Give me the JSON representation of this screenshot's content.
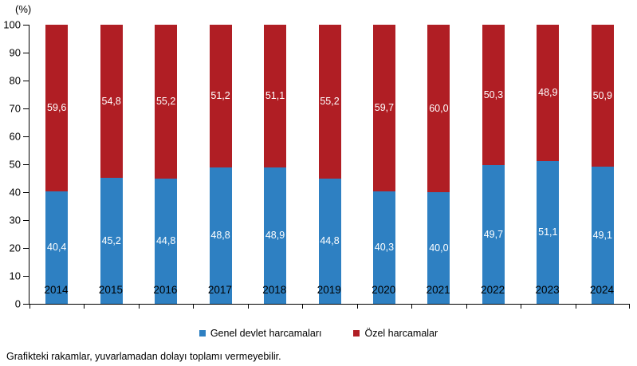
{
  "chart_data": {
    "type": "bar",
    "stacked": true,
    "title": "",
    "categories": [
      "2014",
      "2015",
      "2016",
      "2017",
      "2018",
      "2019",
      "2020",
      "2021",
      "2022",
      "2023",
      "2024"
    ],
    "series": [
      {
        "name": "Genel devlet harcamaları",
        "color": "#2E80C2",
        "values": [
          40.4,
          45.2,
          44.8,
          48.8,
          48.9,
          44.8,
          40.3,
          40.0,
          49.7,
          51.1,
          49.1
        ],
        "labels": [
          "40,4",
          "45,2",
          "44,8",
          "48,8",
          "48,9",
          "44,8",
          "40,3",
          "40,0",
          "49,7",
          "51,1",
          "49,1"
        ]
      },
      {
        "name": "Özel harcamalar",
        "color": "#B01E24",
        "values": [
          59.6,
          54.8,
          55.2,
          51.2,
          51.1,
          55.2,
          59.7,
          60.0,
          50.3,
          48.9,
          50.9
        ],
        "labels": [
          "59,6",
          "54,8",
          "55,2",
          "51,2",
          "51,1",
          "55,2",
          "59,7",
          "60,0",
          "50,3",
          "48,9",
          "50,9"
        ]
      }
    ],
    "y_axis": {
      "title": "(%)",
      "min": 0,
      "max": 100,
      "tick_step": 10,
      "tick_labels": [
        "0",
        "10",
        "20",
        "30",
        "40",
        "50",
        "60",
        "70",
        "80",
        "90",
        "100"
      ]
    },
    "xlabel": "",
    "ylabel": "(%)",
    "grid": false,
    "legend_position": "bottom",
    "label_position": "segment-center",
    "footnote": "Grafikteki rakamlar, yuvarlamadan dolayı toplamı vermeyebilir."
  }
}
